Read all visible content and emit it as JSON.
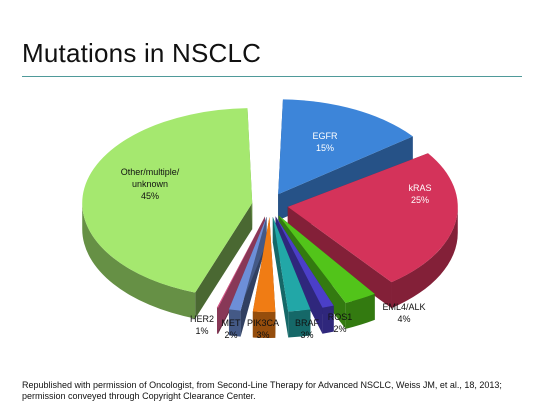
{
  "slide": {
    "title": "Mutations in NSCLC",
    "credit": "Republished with permission of Oncologist, from Second-Line Therapy for Advanced NSCLC, Weiss JM, et al., 18, 2013; permission conveyed through Copyright Clearance Center."
  },
  "chart_data": {
    "type": "pie",
    "title": "Mutations in NSCLC",
    "slices": [
      {
        "label": "EGFR",
        "value": 15,
        "value_label": "15%",
        "color": "#3d85d9"
      },
      {
        "label": "kRAS",
        "value": 25,
        "value_label": "25%",
        "color": "#d4335a"
      },
      {
        "label": "EML4/ALK",
        "value": 4,
        "value_label": "4%",
        "color": "#52c41a"
      },
      {
        "label": "ROS1",
        "value": 2,
        "value_label": "2%",
        "color": "#4b3fc8"
      },
      {
        "label": "BRAF",
        "value": 3,
        "value_label": "3%",
        "color": "#22a7a7"
      },
      {
        "label": "PIK3CA",
        "value": 3,
        "value_label": "3%",
        "color": "#f07c14"
      },
      {
        "label": "MET",
        "value": 2,
        "value_label": "2%",
        "color": "#6d8fd8"
      },
      {
        "label": "HER2",
        "value": 1,
        "value_label": "1%",
        "color": "#dc5a8d"
      },
      {
        "label": "Other/multiple/ unknown",
        "value": 45,
        "value_label": "45%",
        "color": "#a5e86f"
      }
    ]
  }
}
